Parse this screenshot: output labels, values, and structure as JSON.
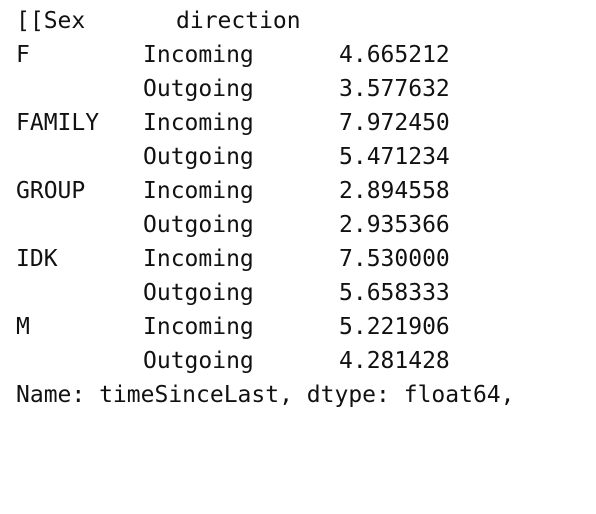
{
  "header": {
    "index_name": "[[Sex",
    "column_name": "direction"
  },
  "rows": [
    {
      "sex": "F",
      "direction": "Incoming",
      "value": "4.665212"
    },
    {
      "sex": "",
      "direction": "Outgoing",
      "value": "3.577632"
    },
    {
      "sex": "FAMILY",
      "direction": "Incoming",
      "value": "7.972450"
    },
    {
      "sex": "",
      "direction": "Outgoing",
      "value": "5.471234"
    },
    {
      "sex": "GROUP",
      "direction": "Incoming",
      "value": "2.894558"
    },
    {
      "sex": "",
      "direction": "Outgoing",
      "value": "2.935366"
    },
    {
      "sex": "IDK",
      "direction": "Incoming",
      "value": "7.530000"
    },
    {
      "sex": "",
      "direction": "Outgoing",
      "value": "5.658333"
    },
    {
      "sex": "M",
      "direction": "Incoming",
      "value": "5.221906"
    },
    {
      "sex": "",
      "direction": "Outgoing",
      "value": "4.281428"
    }
  ],
  "footer": "Name: timeSinceLast, dtype: float64,"
}
